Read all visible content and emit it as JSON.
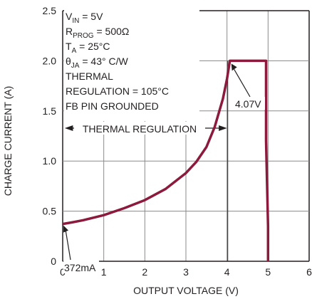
{
  "chart_data": {
    "type": "line",
    "xlabel": "OUTPUT VOLTAGE (V)",
    "ylabel": "CHARGE CURRENT (A)",
    "xlim": [
      0,
      6
    ],
    "ylim": [
      0,
      2.5
    ],
    "x_ticks": [
      "0",
      "1",
      "2",
      "3",
      "4",
      "5",
      "6"
    ],
    "y_ticks": [
      "0",
      "0.5",
      "1.0",
      "1.5",
      "2.0",
      "2.5"
    ],
    "grid": true,
    "series_color": "#8b1a3c",
    "series": [
      {
        "x": [
          0,
          0.25,
          0.5,
          1.0,
          1.5,
          2.0,
          2.5,
          3.0,
          3.25,
          3.5,
          3.7,
          3.9,
          4.0,
          4.07,
          4.5,
          4.95,
          4.95,
          5.0,
          5.0
        ],
        "y": [
          0.372,
          0.39,
          0.41,
          0.46,
          0.53,
          0.61,
          0.72,
          0.88,
          0.99,
          1.14,
          1.34,
          1.62,
          1.82,
          2.0,
          2.0,
          2.0,
          1.2,
          0.35,
          0
        ]
      }
    ],
    "conditions": [
      {
        "main": "V",
        "sub": "IN",
        "rest": " = 5V"
      },
      {
        "main": "R",
        "sub": "PROG",
        "rest": " = 500Ω"
      },
      {
        "main": "T",
        "sub": "A",
        "rest": " = 25°C"
      },
      {
        "main": "θ",
        "sub": "JA",
        "rest": " = 43° C/W"
      },
      {
        "main": "THERMAL",
        "sub": "",
        "rest": ""
      },
      {
        "main": "REGULATION = 105°C",
        "sub": "",
        "rest": ""
      },
      {
        "main": "FB PIN GROUNDED",
        "sub": "",
        "rest": ""
      }
    ],
    "annotations": {
      "thermal_regulation": "THERMAL REGULATION",
      "v_label": "4.07V",
      "i_label": "372mA"
    }
  }
}
